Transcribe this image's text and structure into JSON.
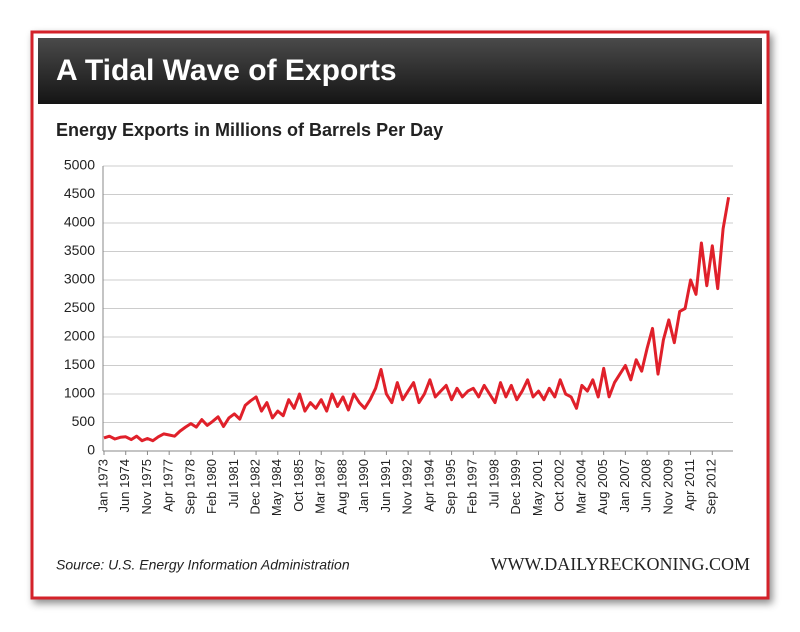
{
  "chart_data": {
    "type": "line",
    "title": "A Tidal Wave of Exports",
    "subtitle": "Energy Exports in Millions of Barrels Per Day",
    "source": "Source: U.S. Energy Information Administration",
    "website": "WWW.DAILYRECKONING.COM",
    "categories": [
      "Jan 1973",
      null,
      null,
      null,
      "Jun 1974",
      null,
      null,
      null,
      "Nov 1975",
      null,
      null,
      null,
      "Apr 1977",
      null,
      null,
      null,
      "Sep 1978",
      null,
      null,
      null,
      "Feb 1980",
      null,
      null,
      null,
      "Jul 1981",
      null,
      null,
      null,
      "Dec 1982",
      null,
      null,
      null,
      "May 1984",
      null,
      null,
      null,
      "Oct 1985",
      null,
      null,
      null,
      "Mar 1987",
      null,
      null,
      null,
      "Aug 1988",
      null,
      null,
      null,
      "Jan 1990",
      null,
      null,
      null,
      "Jun 1991",
      null,
      null,
      null,
      "Nov 1992",
      null,
      null,
      null,
      "Apr 1994",
      null,
      null,
      null,
      "Sep 1995",
      null,
      null,
      null,
      "Feb 1997",
      null,
      null,
      null,
      "Jul 1998",
      null,
      null,
      null,
      "Dec 1999",
      null,
      null,
      null,
      "May 2001",
      null,
      null,
      null,
      "Oct 2002",
      null,
      null,
      null,
      "Mar 2004",
      null,
      null,
      null,
      "Aug 2005",
      null,
      null,
      null,
      "Jan 2007",
      null,
      null,
      null,
      "Jun 2008",
      null,
      null,
      null,
      "Nov 2009",
      null,
      null,
      null,
      "Apr 2011",
      null,
      null,
      null,
      "Sep 2012",
      null,
      null,
      null
    ],
    "series": [
      {
        "name": "Energy Exports",
        "color": "#e0202a",
        "values": [
          230,
          260,
          210,
          240,
          250,
          200,
          260,
          180,
          220,
          180,
          250,
          300,
          280,
          260,
          350,
          420,
          480,
          420,
          550,
          450,
          520,
          600,
          430,
          580,
          650,
          560,
          800,
          880,
          950,
          700,
          850,
          580,
          700,
          620,
          900,
          750,
          1000,
          700,
          850,
          750,
          900,
          700,
          1000,
          780,
          950,
          720,
          1000,
          850,
          750,
          900,
          1100,
          1430,
          1000,
          850,
          1200,
          900,
          1050,
          1200,
          850,
          1000,
          1250,
          950,
          1050,
          1150,
          900,
          1100,
          950,
          1050,
          1100,
          950,
          1150,
          1000,
          850,
          1200,
          950,
          1150,
          900,
          1050,
          1250,
          950,
          1050,
          900,
          1100,
          950,
          1250,
          1000,
          950,
          750,
          1150,
          1050,
          1250,
          950,
          1450,
          950,
          1200,
          1350,
          1500,
          1250,
          1600,
          1400,
          1800,
          2150,
          1350,
          1950,
          2300,
          1900,
          2450,
          2500,
          3000,
          2750,
          3650,
          2900,
          3600,
          2850,
          3900,
          4450
        ]
      }
    ],
    "ylim": [
      0,
      5000
    ],
    "yticks": [
      0,
      500,
      1000,
      1500,
      2000,
      2500,
      3000,
      3500,
      4000,
      4500,
      5000
    ],
    "grid": true
  }
}
